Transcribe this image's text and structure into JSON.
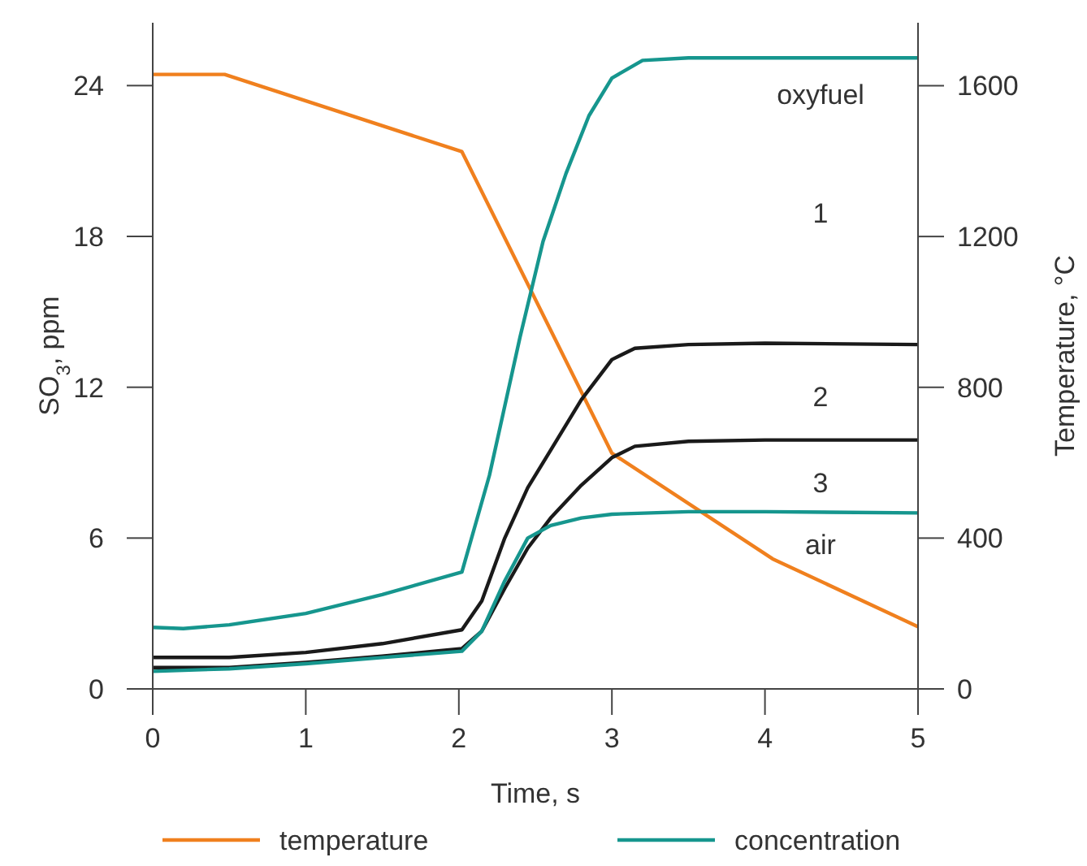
{
  "chart_data": {
    "type": "line",
    "xlabel": "Time, s",
    "ylabel": "SO$_{3}$, ppm",
    "y2label": "Temperature, °C",
    "xlim": [
      0,
      5
    ],
    "xticks": [
      0,
      1,
      2,
      3,
      4,
      5
    ],
    "ylim": [
      0,
      26.5
    ],
    "yticks": [
      0,
      6,
      12,
      18,
      24
    ],
    "y2lim": [
      0,
      1767
    ],
    "y2ticks": [
      0,
      400,
      800,
      1200,
      1600
    ],
    "grid": false,
    "legend": "bottom",
    "marker": "none",
    "line_style": "solid",
    "series": [
      {
        "name": "temperature",
        "color": "#f0801e",
        "axis": "y2",
        "x": [
          0,
          0.47,
          2.02,
          3.0,
          4.05,
          5
        ],
        "values": [
          1630,
          1630,
          1425,
          625,
          345,
          165
        ]
      },
      {
        "name": "concentration",
        "color": "#16968e",
        "x": [
          0,
          0.2,
          0.5,
          1,
          1.5,
          2.02,
          2.2,
          2.4,
          2.55,
          2.7,
          2.85,
          3.0,
          3.2,
          3.5,
          4,
          5
        ],
        "values": [
          2.45,
          2.4,
          2.55,
          3.0,
          3.75,
          4.65,
          8.5,
          14,
          17.8,
          20.5,
          22.8,
          24.3,
          25.0,
          25.1,
          25.1,
          25.1
        ]
      },
      {
        "color": "#1a1a1a",
        "x": [
          0,
          0.5,
          1,
          1.5,
          2.02,
          2.15,
          2.3,
          2.45,
          2.6,
          2.8,
          3.0,
          3.15,
          3.5,
          4,
          5
        ],
        "values": [
          1.25,
          1.25,
          1.45,
          1.8,
          2.35,
          3.5,
          6.0,
          8.0,
          9.5,
          11.5,
          13.1,
          13.55,
          13.7,
          13.75,
          13.7
        ]
      },
      {
        "color": "#1a1a1a",
        "x": [
          0,
          0.5,
          1,
          1.5,
          2.02,
          2.15,
          2.3,
          2.45,
          2.6,
          2.8,
          3.0,
          3.15,
          3.5,
          4,
          5
        ],
        "values": [
          0.85,
          0.85,
          1.05,
          1.3,
          1.6,
          2.3,
          4.0,
          5.6,
          6.8,
          8.1,
          9.2,
          9.65,
          9.85,
          9.9,
          9.9
        ]
      },
      {
        "color": "#16968e",
        "x": [
          0,
          0.5,
          1,
          1.5,
          2.02,
          2.15,
          2.3,
          2.45,
          2.6,
          2.8,
          3.0,
          3.5,
          4,
          5
        ],
        "values": [
          0.7,
          0.8,
          1.0,
          1.25,
          1.5,
          2.3,
          4.3,
          6.0,
          6.5,
          6.8,
          6.95,
          7.05,
          7.05,
          7.0
        ]
      }
    ],
    "annotations": [
      "oxyfuel",
      "1",
      "2",
      "3",
      "air"
    ]
  }
}
